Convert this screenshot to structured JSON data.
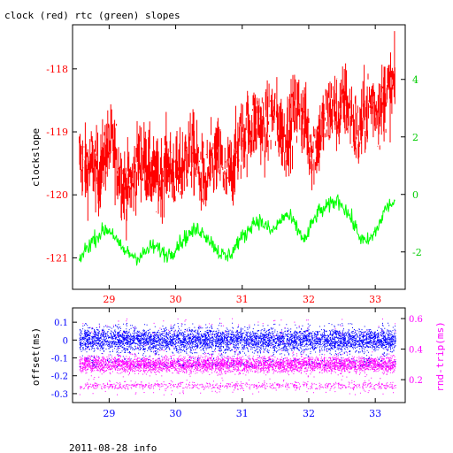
{
  "title": "clock (red) rtc (green) slopes",
  "footer": "2011-08-28 info",
  "colors": {
    "clock": "#ff0000",
    "rtc": "#00ff00",
    "offset": "#0000ff",
    "rtt": "#ff00ff",
    "axis": "#000000"
  },
  "chart_data": [
    {
      "type": "line",
      "ylabel": "clockslope",
      "x_range": [
        28.45,
        33.45
      ],
      "x_ticks": [
        "29",
        "30",
        "31",
        "32",
        "33"
      ],
      "left_axis": {
        "range": [
          -121.5,
          -117.3
        ],
        "ticks": [
          "-118",
          "-119",
          "-120",
          "-121"
        ]
      },
      "right_axis": {
        "range": [
          -3.3,
          5.9
        ],
        "ticks": [
          "4",
          "2",
          "0",
          "-2"
        ]
      },
      "series": [
        {
          "axis": "left",
          "x": [
            28.55,
            28.65,
            28.75,
            28.85,
            28.95,
            29.05,
            29.15,
            29.25,
            29.35,
            29.45,
            29.55,
            29.65,
            29.75,
            29.85,
            29.95,
            30.05,
            30.15,
            30.25,
            30.35,
            30.45,
            30.55,
            30.65,
            30.75,
            30.85,
            30.95,
            31.05,
            31.15,
            31.25,
            31.35,
            31.45,
            31.55,
            31.65,
            31.75,
            31.85,
            31.95,
            32.05,
            32.15,
            32.25,
            32.35,
            32.45,
            32.55,
            32.65,
            32.75,
            32.85,
            32.95,
            33.05,
            33.15,
            33.25
          ],
          "y": [
            -119.4,
            -119.6,
            -119.5,
            -119.7,
            -119.3,
            -119.2,
            -119.6,
            -119.9,
            -119.8,
            -119.4,
            -119.5,
            -119.7,
            -119.8,
            -119.5,
            -119.6,
            -119.7,
            -119.4,
            -119.3,
            -119.6,
            -119.8,
            -119.5,
            -119.4,
            -119.7,
            -119.6,
            -119.2,
            -119.0,
            -118.9,
            -118.8,
            -119.0,
            -118.7,
            -118.9,
            -119.1,
            -118.8,
            -118.6,
            -118.9,
            -119.3,
            -119.1,
            -118.8,
            -118.6,
            -118.7,
            -118.5,
            -118.8,
            -119.1,
            -118.7,
            -118.5,
            -118.7,
            -118.4,
            -118.3
          ]
        },
        {
          "axis": "right",
          "x": [
            28.55,
            28.65,
            28.75,
            28.85,
            28.95,
            29.05,
            29.15,
            29.25,
            29.35,
            29.45,
            29.55,
            29.65,
            29.75,
            29.85,
            29.95,
            30.05,
            30.15,
            30.25,
            30.35,
            30.45,
            30.55,
            30.65,
            30.75,
            30.85,
            30.95,
            31.05,
            31.15,
            31.25,
            31.35,
            31.45,
            31.55,
            31.65,
            31.75,
            31.85,
            31.95,
            32.05,
            32.15,
            32.25,
            32.35,
            32.45,
            32.55,
            32.65,
            32.75,
            32.85,
            32.95,
            33.05,
            33.15,
            33.25
          ],
          "y": [
            -2.3,
            -1.9,
            -1.6,
            -1.4,
            -1.2,
            -1.3,
            -1.8,
            -2.0,
            -2.1,
            -2.2,
            -2.0,
            -1.8,
            -1.9,
            -2.1,
            -2.0,
            -1.7,
            -1.5,
            -1.3,
            -1.2,
            -1.4,
            -1.7,
            -2.0,
            -2.2,
            -2.0,
            -1.6,
            -1.4,
            -1.0,
            -0.9,
            -1.1,
            -1.3,
            -1.0,
            -0.7,
            -0.9,
            -1.3,
            -1.6,
            -1.0,
            -0.6,
            -0.5,
            -0.3,
            -0.2,
            -0.5,
            -0.9,
            -1.4,
            -1.7,
            -1.5,
            -1.1,
            -0.5,
            -0.3
          ]
        }
      ]
    },
    {
      "type": "scatter",
      "ylabel_left": "offset(ms)",
      "ylabel_right": "rnd-trip(ms)",
      "x_range": [
        28.45,
        33.45
      ],
      "x_ticks": [
        "29",
        "30",
        "31",
        "32",
        "33"
      ],
      "left_axis": {
        "range": [
          -0.35,
          0.18
        ],
        "ticks": [
          "0.1",
          "0",
          "-0.1",
          "-0.2",
          "-0.3"
        ]
      },
      "right_axis": {
        "range": [
          0.05,
          0.67
        ],
        "ticks": [
          "0.6",
          "0.4",
          "0.2"
        ]
      },
      "series": [
        {
          "axis": "left",
          "center": 0.0,
          "spread": 0.03,
          "outliers": [
            -0.2,
            0.15
          ]
        },
        {
          "axis": "right",
          "center": 0.3,
          "spread": 0.025,
          "secondary_band": 0.16,
          "outliers": [
            0.1,
            0.6
          ]
        }
      ]
    }
  ]
}
